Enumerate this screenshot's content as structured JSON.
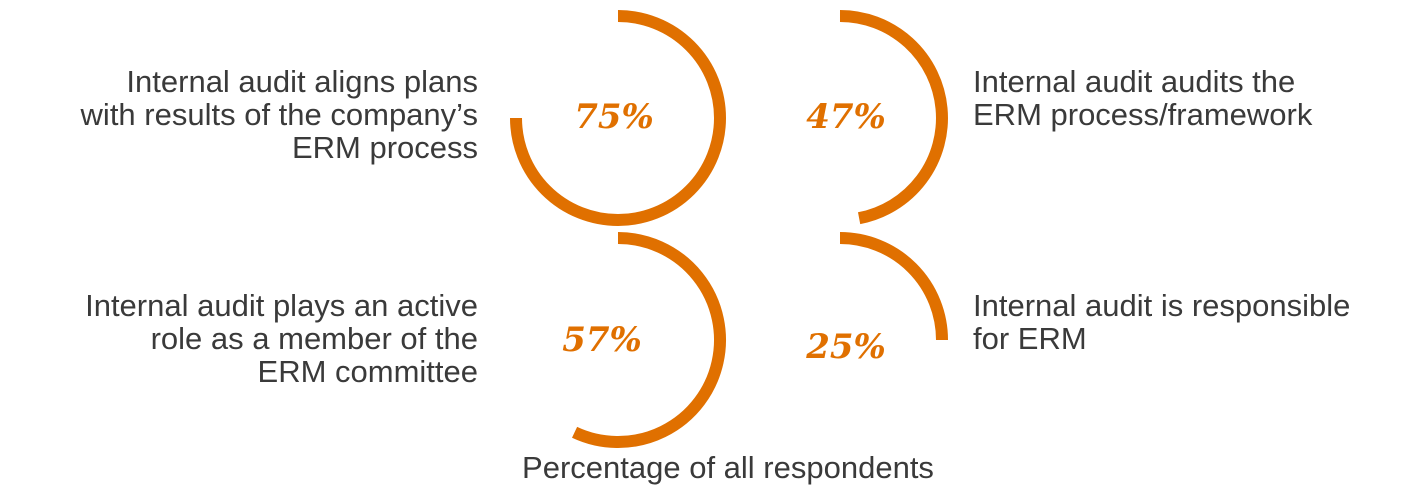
{
  "chart_data": {
    "type": "radial-arc",
    "accent_color": "#e07000",
    "text_color": "#3a3a3a",
    "caption": "Percentage of all respondents",
    "items": [
      {
        "value": 75,
        "value_label": "75%",
        "label_lines": [
          "Internal audit aligns plans",
          "with results of the company’s",
          "ERM process"
        ]
      },
      {
        "value": 47,
        "value_label": "47%",
        "label_lines": [
          "Internal audit audits the",
          "ERM process/framework"
        ]
      },
      {
        "value": 57,
        "value_label": "57%",
        "label_lines": [
          "Internal audit plays an active",
          "role as a member of the",
          "ERM committee"
        ]
      },
      {
        "value": 25,
        "value_label": "25%",
        "label_lines": [
          "Internal audit is responsible",
          "for ERM"
        ]
      }
    ]
  }
}
